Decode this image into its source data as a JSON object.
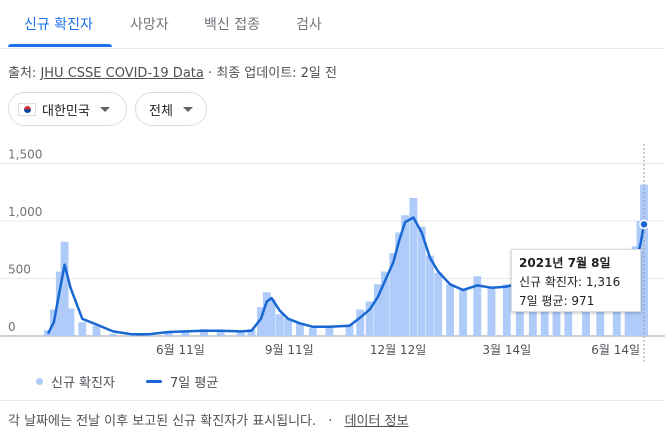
{
  "tabs": [
    {
      "label": "신규 확진자",
      "active": true
    },
    {
      "label": "사망자",
      "active": false
    },
    {
      "label": "백신 접종",
      "active": false
    },
    {
      "label": "검사",
      "active": false
    }
  ],
  "source": {
    "prefix": "출처: ",
    "link": "JHU CSSE COVID-19 Data",
    "suffix": " · 최종 업데이트: 2일 전"
  },
  "filters": {
    "country": "대한민국",
    "region": "전체"
  },
  "tooltip": {
    "date": "2021년 7월 8일",
    "cases": "신규 확진자: 1,316",
    "average": "7일 평균: 971"
  },
  "legend": {
    "bars": "신규 확진자",
    "line": "7일 평균"
  },
  "footer": {
    "text": "각 날짜에는 전날 이후 보고된 신규 확진자가 표시됩니다.",
    "sep": "·",
    "link": "데이터 정보"
  },
  "colors": {
    "accent": "#1a73e8",
    "bar": "#aecbfa",
    "line": "#1967d2"
  },
  "chart_data": {
    "type": "bar",
    "title": "",
    "xlabel": "",
    "ylabel": "",
    "y_ticks": [
      "0",
      "500",
      "1,000",
      "1,500"
    ],
    "ylim": [
      0,
      1650
    ],
    "x_ticks": [
      "6월 11일",
      "9월 11일",
      "12월 12일",
      "3월 14일",
      "6월 14일"
    ],
    "grid": true,
    "legend_position": "bottom-left",
    "series": [
      {
        "name": "신규 확진자",
        "kind": "bar",
        "x": [
          "2020-02-20",
          "2020-02-25",
          "2020-03-01",
          "2020-03-05",
          "2020-03-10",
          "2020-03-20",
          "2020-04-01",
          "2020-04-15",
          "2020-05-01",
          "2020-05-15",
          "2020-06-01",
          "2020-06-15",
          "2020-07-01",
          "2020-07-15",
          "2020-08-01",
          "2020-08-10",
          "2020-08-18",
          "2020-08-23",
          "2020-08-27",
          "2020-09-03",
          "2020-09-10",
          "2020-09-20",
          "2020-10-01",
          "2020-10-15",
          "2020-11-01",
          "2020-11-10",
          "2020-11-18",
          "2020-11-25",
          "2020-12-01",
          "2020-12-08",
          "2020-12-13",
          "2020-12-18",
          "2020-12-25",
          "2021-01-01",
          "2021-01-08",
          "2021-01-15",
          "2021-01-25",
          "2021-02-05",
          "2021-02-17",
          "2021-03-01",
          "2021-03-14",
          "2021-03-25",
          "2021-04-05",
          "2021-04-15",
          "2021-04-25",
          "2021-05-05",
          "2021-05-20",
          "2021-06-01",
          "2021-06-15",
          "2021-06-25",
          "2021-07-01",
          "2021-07-05",
          "2021-07-08"
        ],
        "values": [
          50,
          230,
          560,
          820,
          240,
          120,
          90,
          20,
          10,
          25,
          40,
          45,
          60,
          40,
          30,
          60,
          250,
          380,
          320,
          190,
          150,
          110,
          70,
          90,
          100,
          230,
          300,
          450,
          560,
          720,
          900,
          1050,
          1200,
          950,
          700,
          550,
          450,
          400,
          520,
          420,
          450,
          470,
          560,
          700,
          580,
          620,
          600,
          580,
          500,
          630,
          780,
          1000,
          1316
        ]
      },
      {
        "name": "7일 평균",
        "kind": "line",
        "x": [
          "2020-02-20",
          "2020-02-25",
          "2020-03-01",
          "2020-03-05",
          "2020-03-10",
          "2020-03-20",
          "2020-04-01",
          "2020-04-15",
          "2020-05-01",
          "2020-05-15",
          "2020-06-01",
          "2020-06-15",
          "2020-07-01",
          "2020-07-15",
          "2020-08-01",
          "2020-08-10",
          "2020-08-18",
          "2020-08-23",
          "2020-08-27",
          "2020-09-03",
          "2020-09-10",
          "2020-09-20",
          "2020-10-01",
          "2020-10-15",
          "2020-11-01",
          "2020-11-10",
          "2020-11-18",
          "2020-11-25",
          "2020-12-01",
          "2020-12-08",
          "2020-12-13",
          "2020-12-18",
          "2020-12-25",
          "2021-01-01",
          "2021-01-08",
          "2021-01-15",
          "2021-01-25",
          "2021-02-05",
          "2021-02-17",
          "2021-03-01",
          "2021-03-14",
          "2021-03-25",
          "2021-04-05",
          "2021-04-15",
          "2021-04-25",
          "2021-05-05",
          "2021-05-20",
          "2021-06-01",
          "2021-06-15",
          "2021-06-25",
          "2021-07-01",
          "2021-07-05",
          "2021-07-08"
        ],
        "values": [
          20,
          120,
          400,
          620,
          420,
          150,
          100,
          40,
          15,
          15,
          35,
          40,
          45,
          45,
          40,
          45,
          150,
          300,
          330,
          220,
          150,
          110,
          80,
          80,
          90,
          160,
          230,
          340,
          480,
          640,
          830,
          990,
          1030,
          900,
          680,
          560,
          450,
          400,
          440,
          420,
          430,
          460,
          500,
          620,
          550,
          560,
          520,
          540,
          480,
          540,
          640,
          800,
          971
        ]
      }
    ]
  }
}
